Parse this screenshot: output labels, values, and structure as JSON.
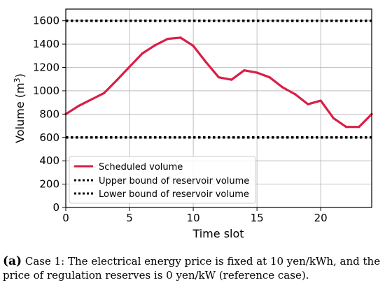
{
  "chart_data": {
    "type": "line",
    "xlabel": "Time slot",
    "ylabel": "Volume (m",
    "ylabel_sup": "3",
    "ylabel_close": ")",
    "xlim": [
      0,
      24
    ],
    "ylim": [
      0,
      1700
    ],
    "x_ticks": [
      0,
      5,
      10,
      15,
      20
    ],
    "y_ticks": [
      0,
      200,
      400,
      600,
      800,
      1000,
      1200,
      1400,
      1600
    ],
    "grid": true,
    "legend_placement": "lower-left",
    "series": [
      {
        "name": "Scheduled volume",
        "style": "solid",
        "color": "#d81f46",
        "x": [
          0,
          1,
          2,
          3,
          4,
          5,
          6,
          7,
          8,
          9,
          10,
          11,
          12,
          13,
          14,
          15,
          16,
          17,
          18,
          19,
          20,
          21,
          22,
          23,
          24
        ],
        "y": [
          800,
          870,
          925,
          980,
          1090,
          1205,
          1320,
          1390,
          1445,
          1455,
          1385,
          1245,
          1115,
          1095,
          1175,
          1155,
          1115,
          1030,
          970,
          885,
          915,
          765,
          690,
          690,
          800
        ]
      },
      {
        "name": "Upper bound of reservoir volume",
        "style": "dotted",
        "color": "#000000",
        "x": [
          0,
          24
        ],
        "y": [
          1600,
          1600
        ]
      },
      {
        "name": "Lower bound of reservoir volume",
        "style": "dotted",
        "color": "#000000",
        "x": [
          0,
          24
        ],
        "y": [
          600,
          600
        ]
      }
    ]
  },
  "caption": {
    "tag": "(a)",
    "text": " Case 1: The electrical energy price is fixed at 10 yen/kWh, and the price of regulation reserves is 0 yen/kW (reference case)."
  }
}
